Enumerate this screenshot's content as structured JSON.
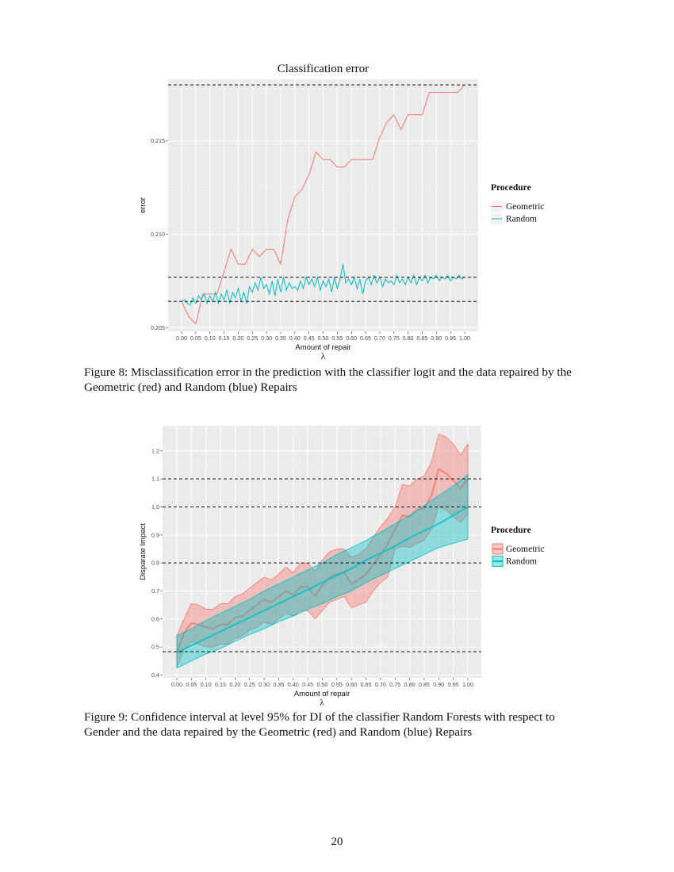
{
  "chart_data": [
    {
      "type": "line",
      "title": "Classification error",
      "xlabel": "Amount of repair",
      "xlabel2": "λ",
      "ylabel": "error",
      "xlim": [
        0,
        1
      ],
      "ylim": [
        0.2048,
        0.2183
      ],
      "xticks": [
        "0.00",
        "0.05",
        "0.10",
        "0.15",
        "0.20",
        "0.25",
        "0.30",
        "0.35",
        "0.40",
        "0.45",
        "0.50",
        "0.55",
        "0.60",
        "0.65",
        "0.70",
        "0.75",
        "0.80",
        "0.85",
        "0.90",
        "0.95",
        "1.00"
      ],
      "yticks": [
        "0.205",
        "0.210",
        "0.215"
      ],
      "grid": true,
      "hlines": [
        0.218,
        0.2077,
        0.2064
      ],
      "legend": {
        "title": "Procedure",
        "position": "right"
      },
      "series": [
        {
          "name": "Geometric",
          "color": "#F8766D",
          "values": [
            0.2064,
            0.2056,
            0.2052,
            0.2068,
            0.2068,
            0.2068,
            0.208,
            0.2092,
            0.2084,
            0.2084,
            0.2092,
            0.2088,
            0.2092,
            0.2092,
            0.2084,
            0.2108,
            0.212,
            0.2124,
            0.2132,
            0.2144,
            0.214,
            0.214,
            0.2136,
            0.2136,
            0.214,
            0.214,
            0.214,
            0.214,
            0.2152,
            0.216,
            0.2164,
            0.2156,
            0.2164,
            0.2164,
            0.2164,
            0.2176,
            0.2176,
            0.2176,
            0.2176,
            0.2176,
            0.218
          ]
        },
        {
          "name": "Random",
          "color": "#00BFC4",
          "values": [
            0.2064,
            0.2065,
            0.2063,
            0.2062,
            0.2066,
            0.2063,
            0.2067,
            0.2065,
            0.2068,
            0.2063,
            0.2067,
            0.2064,
            0.2069,
            0.2063,
            0.2068,
            0.2065,
            0.207,
            0.2063,
            0.2069,
            0.2066,
            0.2071,
            0.2064,
            0.2069,
            0.2063,
            0.2072,
            0.2069,
            0.2074,
            0.207,
            0.2077,
            0.2071,
            0.2073,
            0.2068,
            0.2075,
            0.2067,
            0.2076,
            0.2069,
            0.2077,
            0.207,
            0.2074,
            0.2071,
            0.2072,
            0.207,
            0.2075,
            0.2071,
            0.2077,
            0.2073,
            0.2076,
            0.2072,
            0.2077,
            0.207,
            0.2075,
            0.2072,
            0.2076,
            0.2069,
            0.2077,
            0.2071,
            0.2076,
            0.2084,
            0.2074,
            0.2076,
            0.2073,
            0.2077,
            0.2071,
            0.2076,
            0.2068,
            0.2075,
            0.2077,
            0.2073,
            0.2078,
            0.2074,
            0.2077,
            0.2072,
            0.2076,
            0.2074,
            0.2075,
            0.2073,
            0.2078,
            0.2074,
            0.2076,
            0.2073,
            0.2077,
            0.2074,
            0.2078,
            0.2073,
            0.2077,
            0.2075,
            0.2078,
            0.2074,
            0.2077,
            0.2076,
            0.2078,
            0.2075,
            0.2077,
            0.2076,
            0.2078,
            0.2075,
            0.2077,
            0.2076,
            0.2078,
            0.2076,
            0.2077
          ]
        }
      ]
    },
    {
      "type": "area",
      "title": "",
      "xlabel": "Amount of repair",
      "xlabel2": "λ",
      "ylabel": "Disparate Impact",
      "xlim": [
        0,
        1
      ],
      "ylim": [
        0.39,
        1.29
      ],
      "xticks": [
        "0.00",
        "0.05",
        "0.10",
        "0.15",
        "0.20",
        "0.25",
        "0.30",
        "0.35",
        "0.40",
        "0.45",
        "0.50",
        "0.55",
        "0.60",
        "0.65",
        "0.70",
        "0.75",
        "0.80",
        "0.85",
        "0.90",
        "0.95",
        "1.00"
      ],
      "yticks": [
        "0.4",
        "0.5",
        "0.6",
        "0.7",
        "0.8",
        "0.9",
        "1.0",
        "1.1",
        "1.2"
      ],
      "grid": true,
      "hlines": [
        1.1,
        1.0,
        0.8,
        0.483
      ],
      "legend": {
        "title": "Procedure",
        "position": "right"
      },
      "series": [
        {
          "name": "Geometric",
          "color": "#F8766D",
          "mean": [
            0.48,
            0.55,
            0.585,
            0.58,
            0.57,
            0.565,
            0.58,
            0.58,
            0.605,
            0.61,
            0.63,
            0.65,
            0.67,
            0.66,
            0.68,
            0.7,
            0.685,
            0.715,
            0.715,
            0.68,
            0.72,
            0.75,
            0.76,
            0.765,
            0.725,
            0.74,
            0.76,
            0.795,
            0.83,
            0.87,
            0.92,
            0.97,
            0.965,
            0.99,
            0.995,
            1.04,
            1.135,
            1.12,
            1.095,
            1.065,
            1.1
          ],
          "upper": [
            0.54,
            0.6,
            0.655,
            0.65,
            0.635,
            0.635,
            0.655,
            0.655,
            0.68,
            0.69,
            0.71,
            0.73,
            0.75,
            0.74,
            0.76,
            0.785,
            0.765,
            0.8,
            0.8,
            0.77,
            0.81,
            0.84,
            0.85,
            0.85,
            0.82,
            0.83,
            0.85,
            0.89,
            0.93,
            0.96,
            1.0,
            1.08,
            1.075,
            1.1,
            1.11,
            1.16,
            1.26,
            1.25,
            1.225,
            1.185,
            1.225
          ],
          "lower": [
            0.43,
            0.49,
            0.52,
            0.51,
            0.5,
            0.5,
            0.51,
            0.51,
            0.53,
            0.54,
            0.56,
            0.57,
            0.59,
            0.58,
            0.6,
            0.62,
            0.61,
            0.63,
            0.63,
            0.6,
            0.63,
            0.66,
            0.67,
            0.68,
            0.64,
            0.65,
            0.66,
            0.7,
            0.73,
            0.75,
            0.85,
            0.86,
            0.855,
            0.87,
            0.88,
            0.92,
            1.0,
            0.99,
            0.965,
            0.945,
            0.975
          ]
        },
        {
          "name": "Random",
          "color": "#00BFC4",
          "mean": [
            0.48,
            0.505,
            0.53,
            0.555,
            0.58,
            0.605,
            0.63,
            0.655,
            0.68,
            0.705,
            0.73,
            0.755,
            0.78,
            0.81,
            0.835,
            0.86,
            0.89,
            0.915,
            0.94,
            0.97,
            1.0
          ],
          "upper": [
            0.54,
            0.565,
            0.595,
            0.62,
            0.645,
            0.67,
            0.7,
            0.725,
            0.75,
            0.775,
            0.8,
            0.83,
            0.855,
            0.88,
            0.91,
            0.94,
            0.97,
            1.005,
            1.04,
            1.075,
            1.115
          ],
          "lower": [
            0.425,
            0.45,
            0.475,
            0.495,
            0.52,
            0.545,
            0.565,
            0.59,
            0.61,
            0.635,
            0.655,
            0.68,
            0.7,
            0.73,
            0.755,
            0.78,
            0.805,
            0.83,
            0.855,
            0.87,
            0.885
          ]
        }
      ]
    }
  ],
  "captions": {
    "fig8": "Figure 8: Misclassification error in the prediction with the classifier logit and the data repaired by the Geometric (red) and Random (blue) Repairs",
    "fig9": "Figure 9: Confidence interval at level 95% for DI of the classifier Random Forests with respect to Gender and the data repaired by the Geometric (red) and Random (blue) Repairs"
  },
  "page_number": "20"
}
